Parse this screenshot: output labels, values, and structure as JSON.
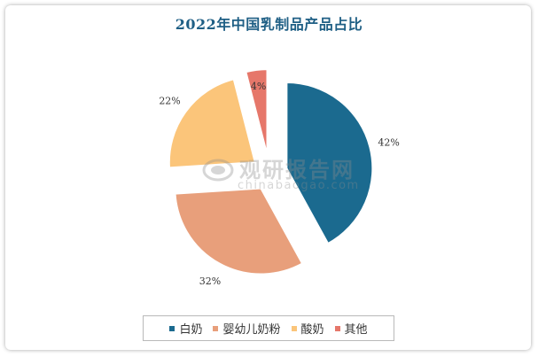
{
  "chart_data": {
    "type": "pie",
    "title": "2022年中国乳制品产品占比",
    "categories": [
      "白奶",
      "婴幼儿奶粉",
      "酸奶",
      "其他"
    ],
    "values": [
      42,
      32,
      22,
      4
    ],
    "data_labels": [
      "42%",
      "32%",
      "22%",
      "4%"
    ],
    "colors": [
      "#1b6a8f",
      "#e89f7b",
      "#fbc57a",
      "#e6776a"
    ],
    "legend_position": "bottom",
    "exploded": true
  },
  "watermark": {
    "text_cn": "观研报告网",
    "text_en": "chinabaogao.com",
    "icon": "chinabaogao-logo-icon"
  }
}
